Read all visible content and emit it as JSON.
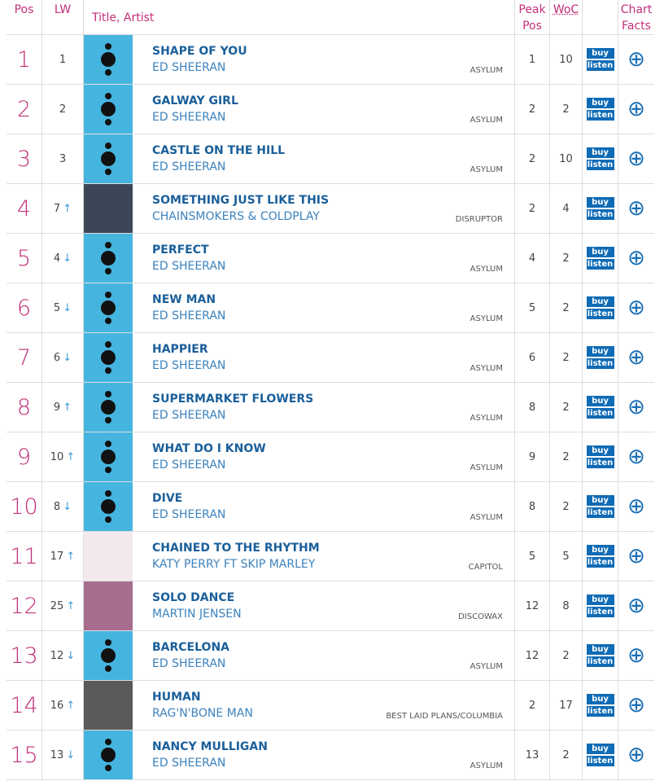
{
  "header": {
    "pos": "Pos",
    "lw": "LW",
    "title_artist": "Title, Artist",
    "peak_pos": "Peak Pos",
    "woc": "WoC",
    "chart_facts": "Chart Facts"
  },
  "buttons": {
    "buy": "buy",
    "listen": "listen",
    "facts": "⊕"
  },
  "rows": [
    {
      "pos": "1",
      "lw": "1",
      "title": "SHAPE OF YOU",
      "artist": "ED SHEERAN",
      "label": "ASYLUM",
      "peak": "1",
      "woc": "10"
    },
    {
      "pos": "2",
      "lw": "2",
      "title": "GALWAY GIRL",
      "artist": "ED SHEERAN",
      "label": "ASYLUM",
      "peak": "2",
      "woc": "2"
    },
    {
      "pos": "3",
      "lw": "3",
      "title": "CASTLE ON THE HILL",
      "artist": "ED SHEERAN",
      "label": "ASYLUM",
      "peak": "2",
      "woc": "10"
    },
    {
      "pos": "4",
      "lw": "7",
      "arrow": "↑",
      "title": "SOMETHING JUST LIKE THIS",
      "artist": "CHAINSMOKERS & COLDPLAY",
      "label": "DISRUPTOR",
      "peak": "2",
      "woc": "4"
    },
    {
      "pos": "5",
      "lw": "4",
      "arrow": "↓",
      "title": "PERFECT",
      "artist": "ED SHEERAN",
      "label": "ASYLUM",
      "peak": "4",
      "woc": "2"
    },
    {
      "pos": "6",
      "lw": "5",
      "arrow": "↓",
      "title": "NEW MAN",
      "artist": "ED SHEERAN",
      "label": "ASYLUM",
      "peak": "5",
      "woc": "2"
    },
    {
      "pos": "7",
      "lw": "6",
      "arrow": "↓",
      "title": "HAPPIER",
      "artist": "ED SHEERAN",
      "label": "ASYLUM",
      "peak": "6",
      "woc": "2"
    },
    {
      "pos": "8",
      "lw": "9",
      "arrow": "↑",
      "title": "SUPERMARKET FLOWERS",
      "artist": "ED SHEERAN",
      "label": "ASYLUM",
      "peak": "8",
      "woc": "2"
    },
    {
      "pos": "9",
      "lw": "10",
      "arrow": "↑",
      "title": "WHAT DO I KNOW",
      "artist": "ED SHEERAN",
      "label": "ASYLUM",
      "peak": "9",
      "woc": "2"
    },
    {
      "pos": "10",
      "lw": "8",
      "arrow": "↓",
      "title": "DIVE",
      "artist": "ED SHEERAN",
      "label": "ASYLUM",
      "peak": "8",
      "woc": "2"
    },
    {
      "pos": "11",
      "lw": "17",
      "arrow": "↑",
      "title": "CHAINED TO THE RHYTHM",
      "artist": "KATY PERRY FT SKIP MARLEY",
      "label": "CAPITOL",
      "peak": "5",
      "woc": "5"
    },
    {
      "pos": "12",
      "lw": "25",
      "arrow": "↑",
      "title": "SOLO DANCE",
      "artist": "MARTIN JENSEN",
      "label": "DISCOWAX",
      "peak": "12",
      "woc": "8"
    },
    {
      "pos": "13",
      "lw": "12",
      "arrow": "↓",
      "title": "BARCELONA",
      "artist": "ED SHEERAN",
      "label": "ASYLUM",
      "peak": "12",
      "woc": "2"
    },
    {
      "pos": "14",
      "lw": "16",
      "arrow": "↑",
      "title": "HUMAN",
      "artist": "RAG'N'BONE MAN",
      "label": "BEST LAID PLANS/COLUMBIA",
      "peak": "2",
      "woc": "17"
    },
    {
      "pos": "15",
      "lw": "13",
      "arrow": "↓",
      "title": "NANCY MULLIGAN",
      "artist": "ED SHEERAN",
      "label": "ASYLUM",
      "peak": "13",
      "woc": "2"
    }
  ]
}
